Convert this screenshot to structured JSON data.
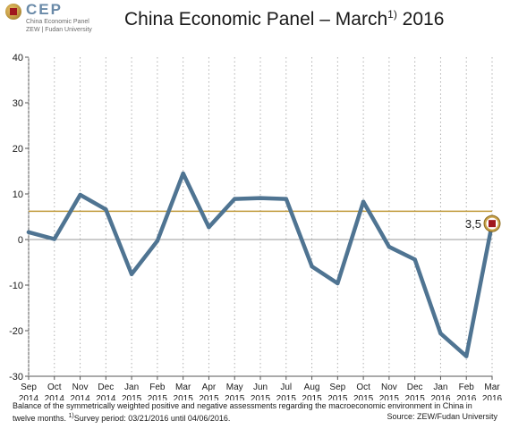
{
  "header": {
    "title": "China Economic Panel – March",
    "title_sup": "1)",
    "title_year": "2016"
  },
  "logo": {
    "acronym": "CEP",
    "line1": "China Economic Panel",
    "line2": "ZEW | Fudan University"
  },
  "chart_data": {
    "type": "line",
    "x_month": [
      "Sep",
      "Oct",
      "Nov",
      "Dec",
      "Jan",
      "Feb",
      "Mar",
      "Apr",
      "May",
      "Jun",
      "Jul",
      "Aug",
      "Sep",
      "Oct",
      "Nov",
      "Dec",
      "Jan",
      "Feb",
      "Mar"
    ],
    "x_year": [
      "2014",
      "2014",
      "2014",
      "2014",
      "2015",
      "2015",
      "2015",
      "2015",
      "2015",
      "2015",
      "2015",
      "2015",
      "2015",
      "2015",
      "2015",
      "2015",
      "2016",
      "2016",
      "2016"
    ],
    "series": [
      {
        "values": [
          1.6,
          0.1,
          9.8,
          6.6,
          -7.6,
          -0.3,
          14.5,
          2.7,
          8.9,
          9.1,
          8.9,
          -5.9,
          -9.6,
          8.3,
          -1.6,
          -4.4,
          -20.6,
          -25.6,
          3.5
        ]
      }
    ],
    "average_line": 6.2,
    "y_ticks": [
      40,
      30,
      20,
      10,
      0,
      -10,
      -20,
      -30
    ],
    "ylim": [
      -30,
      40
    ],
    "value_label": "3,5",
    "colors": {
      "line": "#4f7492",
      "average": "#c09a3a",
      "zero": "#9a9a9a",
      "grid": "#b0b0b0"
    }
  },
  "footnote": {
    "line1": "Balance of the symmetrically weighted positive and negative assessments regarding the macroeconomic environment  in China in",
    "line2_pre": "twelve months. ",
    "line2_sup": "1)",
    "line2_post": "Survey period: 03/21/2016 until 04/06/2016.",
    "source": "Source: ZEW/Fudan University"
  }
}
